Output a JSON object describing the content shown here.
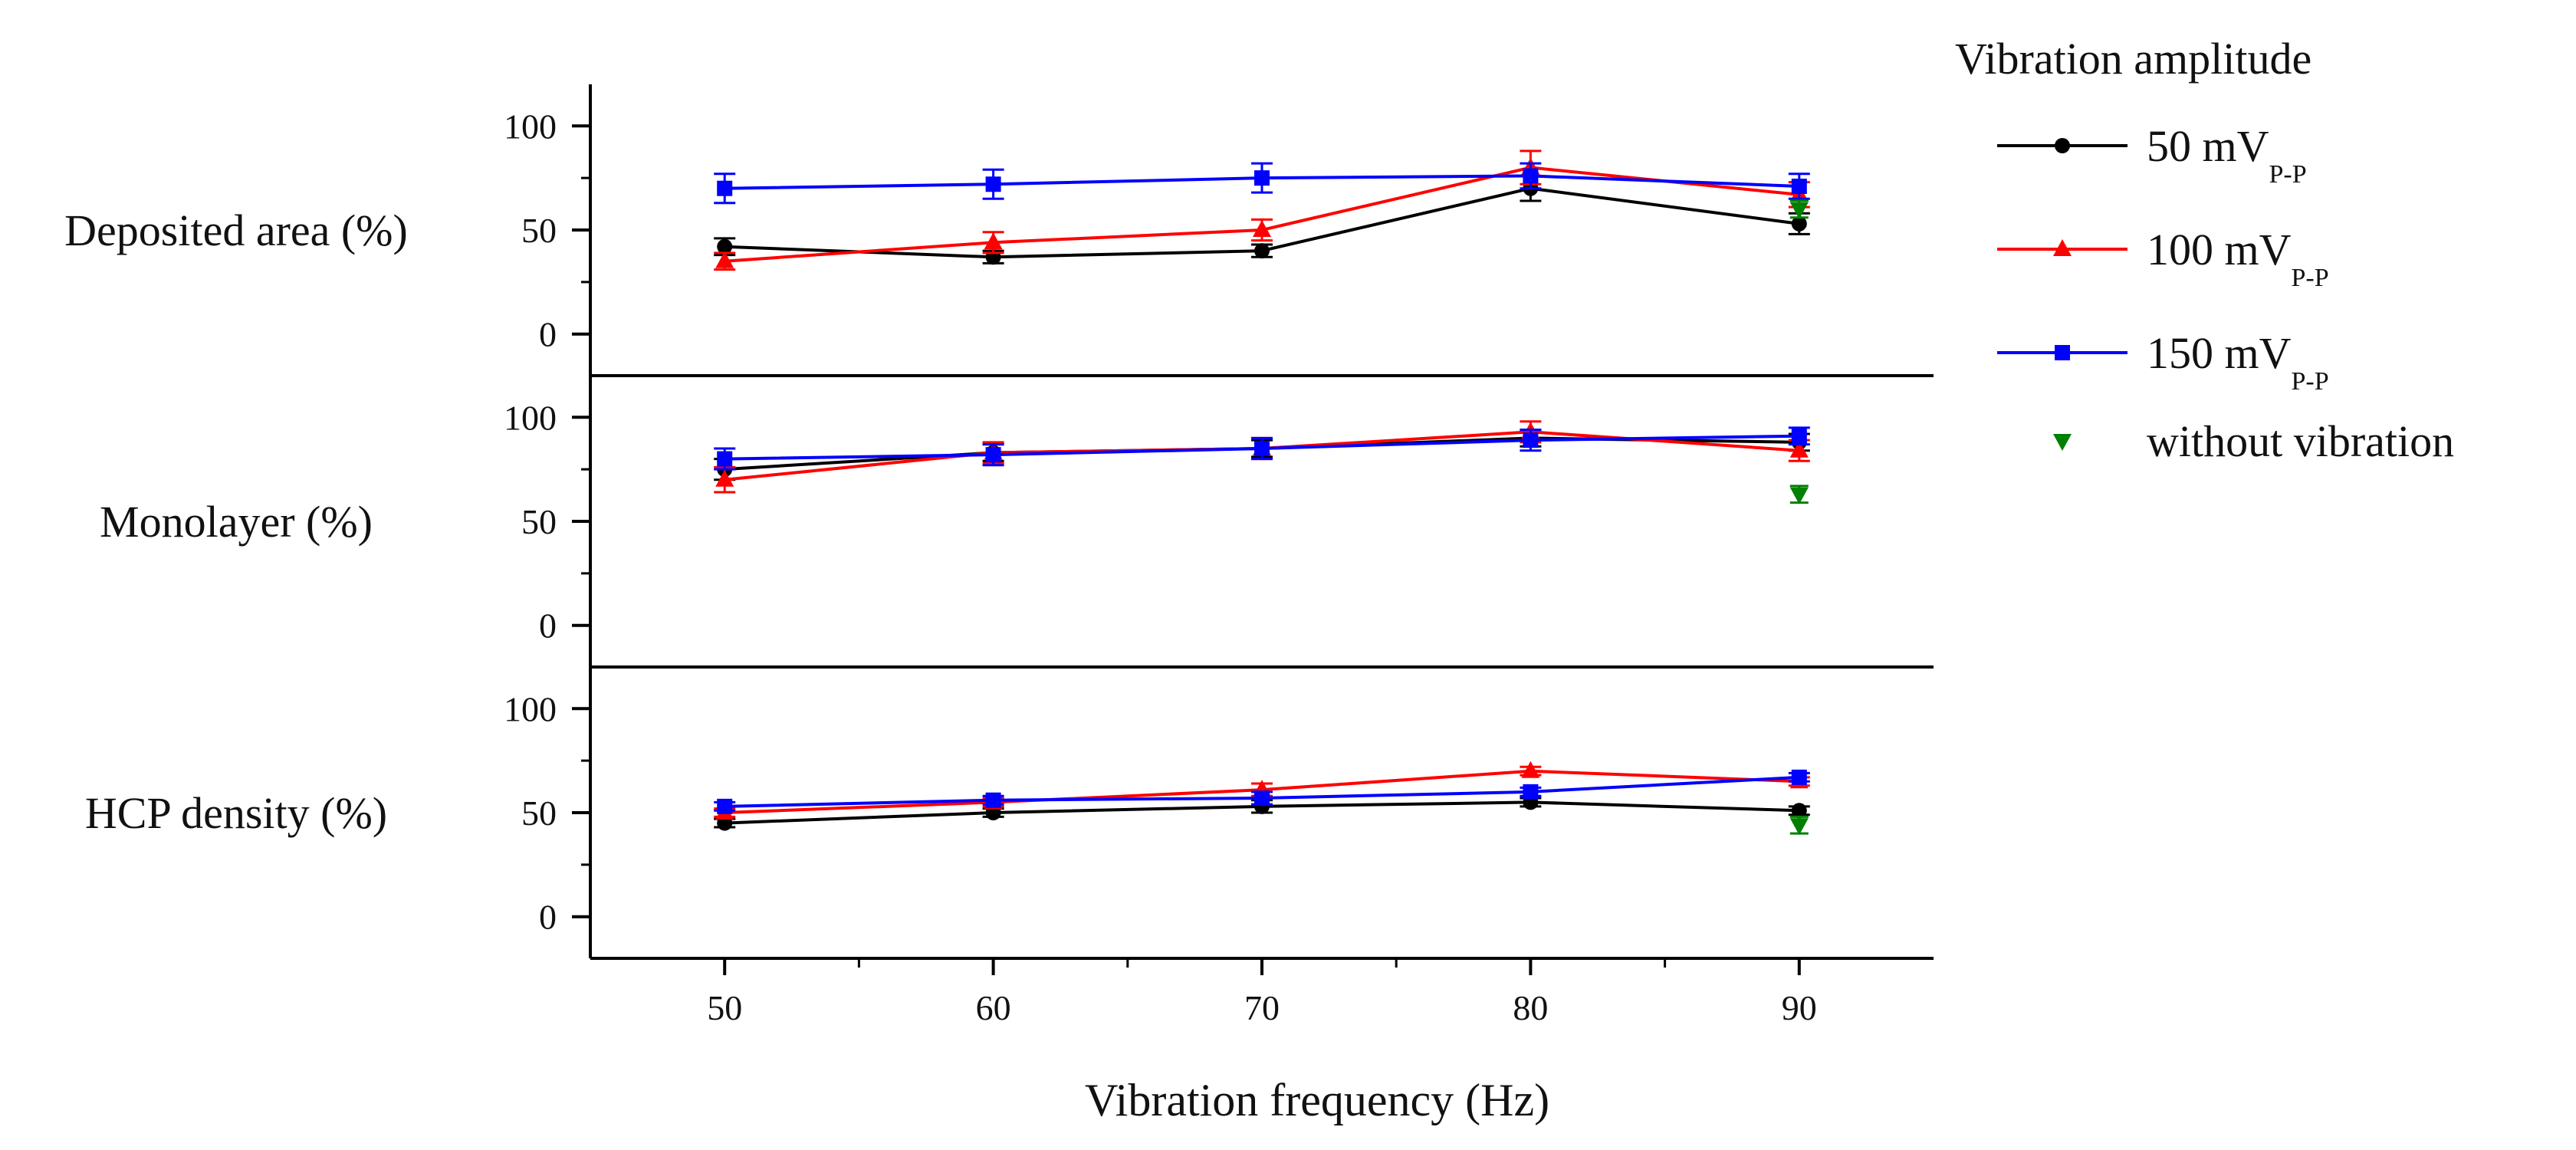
{
  "chart_data": {
    "type": "line",
    "x": [
      50,
      60,
      70,
      80,
      90
    ],
    "xlabel": "Vibration frequency (Hz)",
    "xlim": [
      45,
      95
    ],
    "xticks": [
      50,
      60,
      70,
      80,
      90
    ],
    "ylim": [
      -20,
      120
    ],
    "yticks": [
      0,
      50,
      100
    ],
    "legend": {
      "title": "Vibration amplitude",
      "position": "right",
      "entries": [
        {
          "name": "50 mV",
          "sub": "P-P",
          "color": "#000000",
          "marker": "circle"
        },
        {
          "name": "100 mV",
          "sub": "P-P",
          "color": "#ff0000",
          "marker": "triangle-up"
        },
        {
          "name": "150 mV",
          "sub": "P-P",
          "color": "#0000ff",
          "marker": "square"
        },
        {
          "name": "without vibration",
          "sub": "",
          "color": "#008000",
          "marker": "triangle-down"
        }
      ]
    },
    "panels": [
      {
        "ylabel": "Deposited area (%)",
        "series": [
          {
            "name": "50 mVP-P",
            "color": "#000000",
            "marker": "circle",
            "values": [
              42,
              37,
              40,
              70,
              53
            ],
            "errors": [
              4,
              3,
              3,
              6,
              5
            ]
          },
          {
            "name": "100 mVP-P",
            "color": "#ff0000",
            "marker": "triangle-up",
            "values": [
              35,
              44,
              50,
              80,
              67
            ],
            "errors": [
              4,
              5,
              5,
              8,
              6
            ]
          },
          {
            "name": "150 mVP-P",
            "color": "#0000ff",
            "marker": "square",
            "values": [
              70,
              72,
              75,
              76,
              71
            ],
            "errors": [
              7,
              7,
              7,
              6,
              6
            ]
          }
        ],
        "baseline": {
          "name": "without vibration",
          "color": "#008000",
          "x": 90,
          "value": 60,
          "error": 4
        }
      },
      {
        "ylabel": "Monolayer (%)",
        "series": [
          {
            "name": "50 mVP-P",
            "color": "#000000",
            "marker": "circle",
            "values": [
              75,
              83,
              85,
              90,
              88
            ],
            "errors": [
              5,
              4,
              4,
              4,
              4
            ]
          },
          {
            "name": "100 mVP-P",
            "color": "#ff0000",
            "marker": "triangle-up",
            "values": [
              70,
              83,
              85,
              93,
              84
            ],
            "errors": [
              6,
              5,
              5,
              5,
              5
            ]
          },
          {
            "name": "150 mVP-P",
            "color": "#0000ff",
            "marker": "square",
            "values": [
              80,
              82,
              85,
              89,
              91
            ],
            "errors": [
              5,
              5,
              5,
              5,
              4
            ]
          }
        ],
        "baseline": {
          "name": "without vibration",
          "color": "#008000",
          "x": 90,
          "value": 63,
          "error": 4
        }
      },
      {
        "ylabel": "HCP density (%)",
        "series": [
          {
            "name": "50 mVP-P",
            "color": "#000000",
            "marker": "circle",
            "values": [
              45,
              50,
              53,
              55,
              51
            ],
            "errors": [
              2,
              2,
              3,
              2,
              2
            ]
          },
          {
            "name": "100 mVP-P",
            "color": "#ff0000",
            "marker": "triangle-up",
            "values": [
              50,
              55,
              61,
              70,
              65
            ],
            "errors": [
              2,
              2,
              3,
              2,
              2
            ]
          },
          {
            "name": "150 mVP-P",
            "color": "#0000ff",
            "marker": "square",
            "values": [
              53,
              56,
              57,
              60,
              67
            ],
            "errors": [
              2,
              2,
              3,
              2,
              2
            ]
          }
        ],
        "baseline": {
          "name": "without vibration",
          "color": "#008000",
          "x": 90,
          "value": 44,
          "error": 4
        }
      }
    ]
  }
}
